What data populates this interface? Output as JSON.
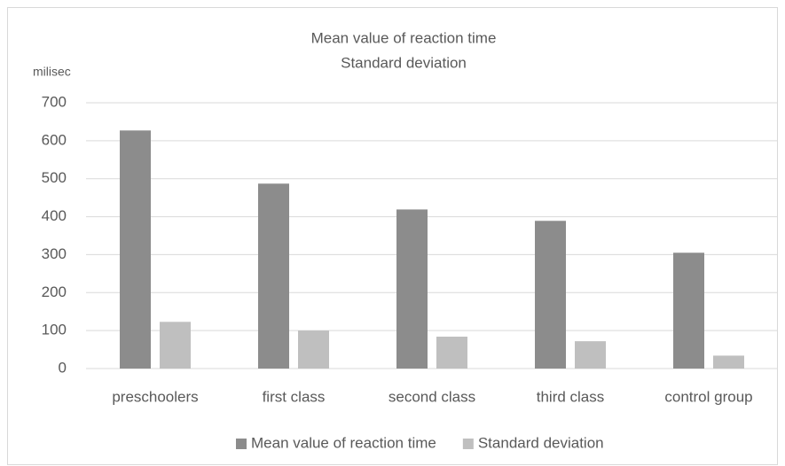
{
  "chart_data": {
    "type": "bar",
    "title": "Mean value of reaction time",
    "subtitle": "Standard deviation",
    "y_label": "milisec",
    "categories": [
      "preschoolers",
      "first class",
      "second class",
      "third class",
      "control group"
    ],
    "series": [
      {
        "name": "Mean value of reaction time",
        "color": "#8c8c8c",
        "values": [
          627,
          487,
          419,
          389,
          305
        ]
      },
      {
        "name": "Standard deviation",
        "color": "#bfbfbf",
        "values": [
          123,
          100,
          84,
          72,
          34
        ]
      }
    ],
    "ylim": [
      0,
      700
    ],
    "yticks": [
      0,
      100,
      200,
      300,
      400,
      500,
      600,
      700
    ],
    "grid": true,
    "legend": "bottom"
  }
}
